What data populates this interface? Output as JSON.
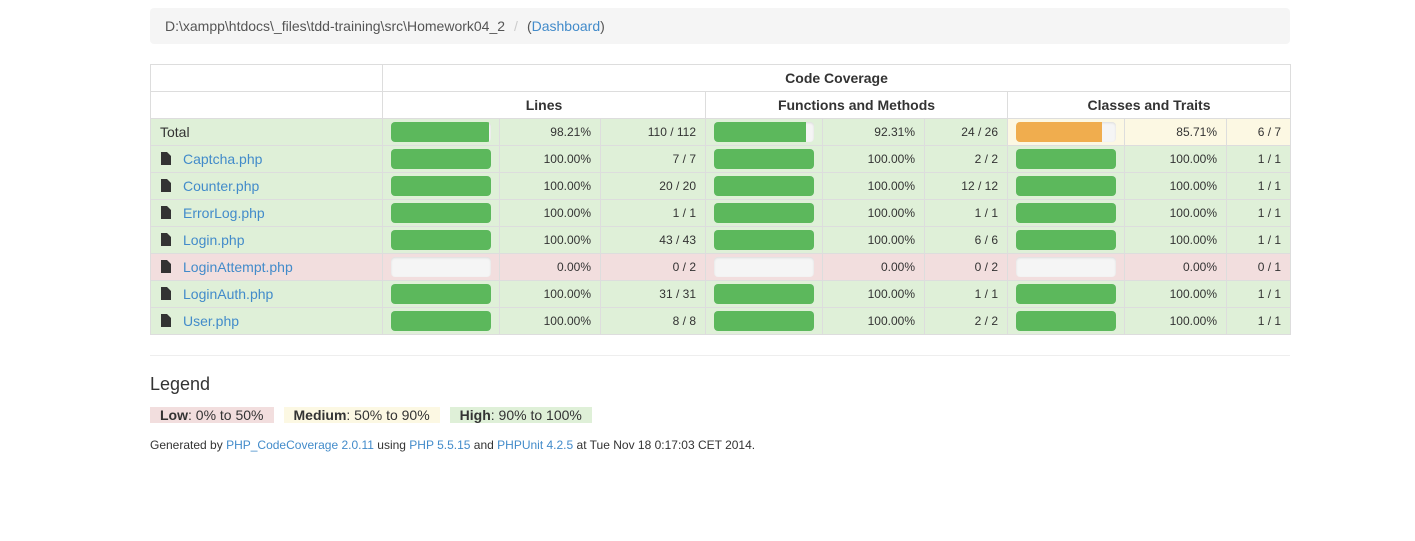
{
  "breadcrumb": {
    "path": "D:\\xampp\\htdocs\\_files\\tdd-training\\src\\Homework04_2",
    "separator": "/",
    "open_paren": "(",
    "dashboard_label": "Dashboard",
    "close_paren": ")"
  },
  "table": {
    "header_main": "Code Coverage",
    "col_lines": "Lines",
    "col_functions": "Functions and Methods",
    "col_classes": "Classes and Traits",
    "rows": [
      {
        "name": "Total",
        "status": "success",
        "lines_pct": "98.21%",
        "lines_ratio": "110 / 112",
        "lines_fill": 0.9821,
        "lines_level": "success",
        "func_pct": "92.31%",
        "func_ratio": "24 / 26",
        "func_fill": 0.9231,
        "func_level": "success",
        "class_pct": "85.71%",
        "class_ratio": "6 / 7",
        "class_fill": 0.8571,
        "class_level": "warning"
      },
      {
        "name": "Captcha.php",
        "status": "success",
        "lines_pct": "100.00%",
        "lines_ratio": "7 / 7",
        "lines_fill": 1,
        "lines_level": "success",
        "func_pct": "100.00%",
        "func_ratio": "2 / 2",
        "func_fill": 1,
        "func_level": "success",
        "class_pct": "100.00%",
        "class_ratio": "1 / 1",
        "class_fill": 1,
        "class_level": "success"
      },
      {
        "name": "Counter.php",
        "status": "success",
        "lines_pct": "100.00%",
        "lines_ratio": "20 / 20",
        "lines_fill": 1,
        "lines_level": "success",
        "func_pct": "100.00%",
        "func_ratio": "12 / 12",
        "func_fill": 1,
        "func_level": "success",
        "class_pct": "100.00%",
        "class_ratio": "1 / 1",
        "class_fill": 1,
        "class_level": "success"
      },
      {
        "name": "ErrorLog.php",
        "status": "success",
        "lines_pct": "100.00%",
        "lines_ratio": "1 / 1",
        "lines_fill": 1,
        "lines_level": "success",
        "func_pct": "100.00%",
        "func_ratio": "1 / 1",
        "func_fill": 1,
        "func_level": "success",
        "class_pct": "100.00%",
        "class_ratio": "1 / 1",
        "class_fill": 1,
        "class_level": "success"
      },
      {
        "name": "Login.php",
        "status": "success",
        "lines_pct": "100.00%",
        "lines_ratio": "43 / 43",
        "lines_fill": 1,
        "lines_level": "success",
        "func_pct": "100.00%",
        "func_ratio": "6 / 6",
        "func_fill": 1,
        "func_level": "success",
        "class_pct": "100.00%",
        "class_ratio": "1 / 1",
        "class_fill": 1,
        "class_level": "success"
      },
      {
        "name": "LoginAttempt.php",
        "status": "danger",
        "lines_pct": "0.00%",
        "lines_ratio": "0 / 2",
        "lines_fill": 0,
        "lines_level": "danger",
        "func_pct": "0.00%",
        "func_ratio": "0 / 2",
        "func_fill": 0,
        "func_level": "danger",
        "class_pct": "0.00%",
        "class_ratio": "0 / 1",
        "class_fill": 0,
        "class_level": "danger"
      },
      {
        "name": "LoginAuth.php",
        "status": "success",
        "lines_pct": "100.00%",
        "lines_ratio": "31 / 31",
        "lines_fill": 1,
        "lines_level": "success",
        "func_pct": "100.00%",
        "func_ratio": "1 / 1",
        "func_fill": 1,
        "func_level": "success",
        "class_pct": "100.00%",
        "class_ratio": "1 / 1",
        "class_fill": 1,
        "class_level": "success"
      },
      {
        "name": "User.php",
        "status": "success",
        "lines_pct": "100.00%",
        "lines_ratio": "8 / 8",
        "lines_fill": 1,
        "lines_level": "success",
        "func_pct": "100.00%",
        "func_ratio": "2 / 2",
        "func_fill": 1,
        "func_level": "success",
        "class_pct": "100.00%",
        "class_ratio": "1 / 1",
        "class_fill": 1,
        "class_level": "success"
      }
    ]
  },
  "legend": {
    "title": "Legend",
    "low_label": "Low",
    "low_range": ": 0% to 50%",
    "medium_label": "Medium",
    "medium_range": ": 50% to 90%",
    "high_label": "High",
    "high_range": ": 90% to 100%"
  },
  "footer": {
    "prefix": "Generated by ",
    "link1": "PHP_CodeCoverage 2.0.11",
    "text2": " using ",
    "link2": "PHP 5.5.15",
    "text3": " and ",
    "link3": "PHPUnit 4.2.5",
    "text4": " at Tue Nov 18 0:17:03 CET 2014."
  },
  "colors": {
    "success_bg": "#dff0d8",
    "danger_bg": "#f2dede",
    "warning_bg": "#fcf8e3",
    "bar_success": "#5cb85c",
    "bar_warning": "#f0ad4e",
    "link": "#428bca"
  },
  "icons": {
    "file": "file-icon"
  }
}
